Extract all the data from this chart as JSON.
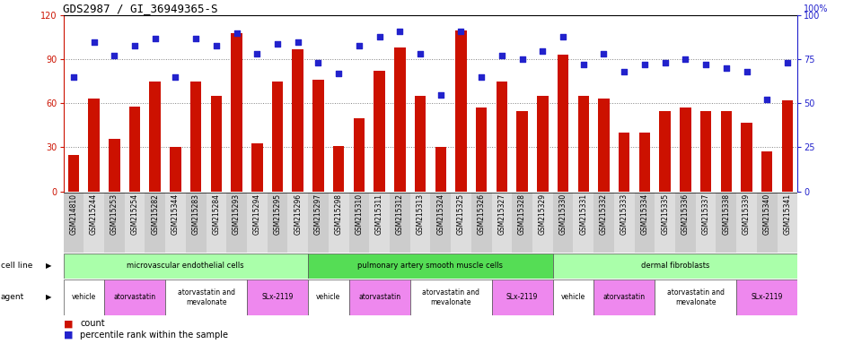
{
  "title": "GDS2987 / GI_36949365-S",
  "gsm_ids": [
    "GSM214810",
    "GSM215244",
    "GSM215253",
    "GSM215254",
    "GSM215282",
    "GSM215344",
    "GSM215283",
    "GSM215284",
    "GSM215293",
    "GSM215294",
    "GSM215295",
    "GSM215296",
    "GSM215297",
    "GSM215298",
    "GSM215310",
    "GSM215311",
    "GSM215312",
    "GSM215313",
    "GSM215324",
    "GSM215325",
    "GSM215326",
    "GSM215327",
    "GSM215328",
    "GSM215329",
    "GSM215330",
    "GSM215331",
    "GSM215332",
    "GSM215333",
    "GSM215334",
    "GSM215335",
    "GSM215336",
    "GSM215337",
    "GSM215338",
    "GSM215339",
    "GSM215340",
    "GSM215341"
  ],
  "counts": [
    25,
    63,
    36,
    58,
    75,
    30,
    75,
    65,
    108,
    33,
    75,
    97,
    76,
    31,
    50,
    82,
    98,
    65,
    30,
    110,
    57,
    75,
    55,
    65,
    93,
    65,
    63,
    40,
    40,
    55,
    57,
    55,
    55,
    47,
    27,
    62
  ],
  "percentiles": [
    65,
    85,
    77,
    83,
    87,
    65,
    87,
    83,
    90,
    78,
    84,
    85,
    73,
    67,
    83,
    88,
    91,
    78,
    55,
    91,
    65,
    77,
    75,
    80,
    88,
    72,
    78,
    68,
    72,
    73,
    75,
    72,
    70,
    68,
    52,
    73
  ],
  "bar_color": "#cc1100",
  "dot_color": "#2222cc",
  "ylim_left": [
    0,
    120
  ],
  "ylim_right": [
    0,
    100
  ],
  "yticks_left": [
    0,
    30,
    60,
    90,
    120
  ],
  "yticks_right": [
    0,
    25,
    50,
    75,
    100
  ],
  "left_axis_color": "#cc1100",
  "right_axis_color": "#2222cc",
  "cell_line_groups": [
    {
      "label": "microvascular endothelial cells",
      "start": 0,
      "end": 11,
      "color": "#aaffaa"
    },
    {
      "label": "pulmonary artery smooth muscle cells",
      "start": 12,
      "end": 23,
      "color": "#55dd55"
    },
    {
      "label": "dermal fibroblasts",
      "start": 24,
      "end": 35,
      "color": "#aaffaa"
    }
  ],
  "agent_groups": [
    {
      "label": "vehicle",
      "start": 0,
      "end": 1,
      "color": "#ffffff"
    },
    {
      "label": "atorvastatin",
      "start": 2,
      "end": 4,
      "color": "#ee88ee"
    },
    {
      "label": "atorvastatin and\nmevalonate",
      "start": 5,
      "end": 8,
      "color": "#ffffff"
    },
    {
      "label": "SLx-2119",
      "start": 9,
      "end": 11,
      "color": "#ee88ee"
    },
    {
      "label": "vehicle",
      "start": 12,
      "end": 13,
      "color": "#ffffff"
    },
    {
      "label": "atorvastatin",
      "start": 14,
      "end": 16,
      "color": "#ee88ee"
    },
    {
      "label": "atorvastatin and\nmevalonate",
      "start": 17,
      "end": 20,
      "color": "#ffffff"
    },
    {
      "label": "SLx-2119",
      "start": 21,
      "end": 23,
      "color": "#ee88ee"
    },
    {
      "label": "vehicle",
      "start": 24,
      "end": 25,
      "color": "#ffffff"
    },
    {
      "label": "atorvastatin",
      "start": 26,
      "end": 28,
      "color": "#ee88ee"
    },
    {
      "label": "atorvastatin and\nmevalonate",
      "start": 29,
      "end": 32,
      "color": "#ffffff"
    },
    {
      "label": "SLx-2119",
      "start": 33,
      "end": 35,
      "color": "#ee88ee"
    }
  ],
  "bar_width": 0.55,
  "title_fontsize": 9
}
